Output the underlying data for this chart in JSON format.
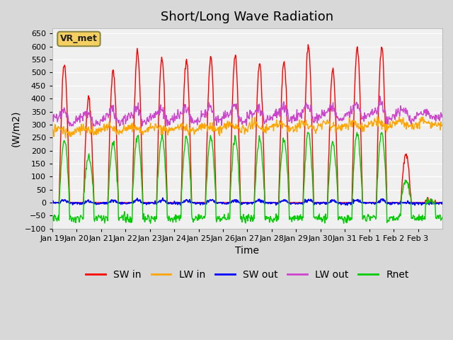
{
  "title": "Short/Long Wave Radiation",
  "ylabel": "(W/m2)",
  "xlabel": "Time",
  "ylim": [
    -100,
    670
  ],
  "yticks": [
    -100,
    -50,
    0,
    50,
    100,
    150,
    200,
    250,
    300,
    350,
    400,
    450,
    500,
    550,
    600,
    650
  ],
  "x_tick_labels": [
    "Jan 19",
    "Jan 20",
    "Jan 21",
    "Jan 22",
    "Jan 23",
    "Jan 24",
    "Jan 25",
    "Jan 26",
    "Jan 27",
    "Jan 28",
    "Jan 29",
    "Jan 30",
    "Jan 31",
    "Feb 1",
    "Feb 2",
    "Feb 3"
  ],
  "legend_labels": [
    "SW in",
    "LW in",
    "SW out",
    "LW out",
    "Rnet"
  ],
  "line_colors": [
    "#ff0000",
    "#ffa500",
    "#0000ff",
    "#cc44cc",
    "#00cc00"
  ],
  "annotation_text": "VR_met",
  "bg_color": "#d8d8d8",
  "plot_bg_color": "#f0f0f0",
  "title_fontsize": 13,
  "axis_fontsize": 10,
  "legend_fontsize": 10
}
